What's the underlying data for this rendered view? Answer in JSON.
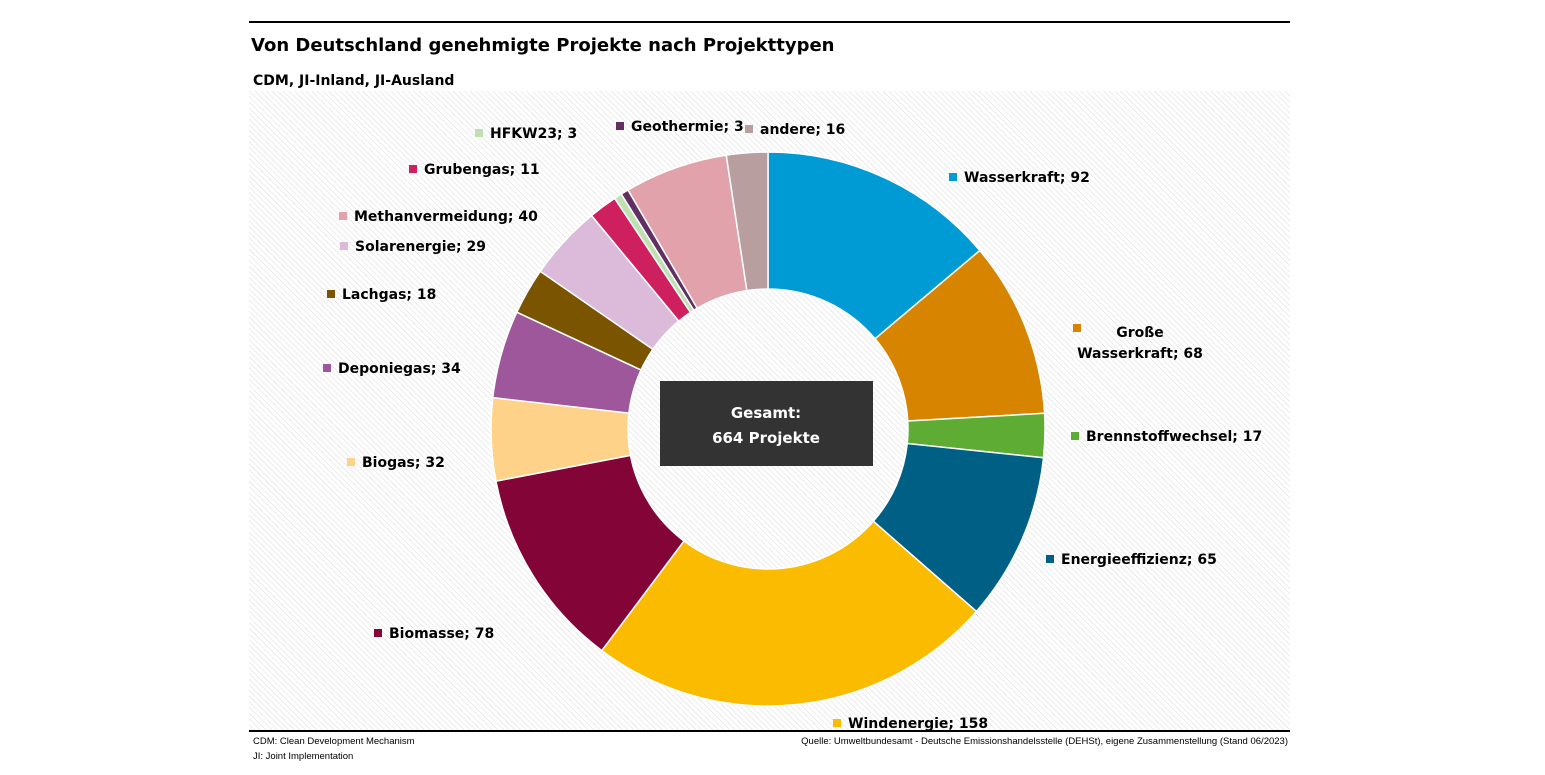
{
  "title": "Von Deutschland genehmigte Projekte nach Projekttypen",
  "subtitle": "CDM, JI-Inland, JI-Ausland",
  "footer": {
    "left_line1": "CDM: Clean Development Mechanism",
    "left_line2": "JI: Joint Implementation",
    "source": "Quelle: Umweltbundesamt - Deutsche Emissionshandelsstelle (DEHSt), eigene Zusammenstellung (Stand 06/2023)"
  },
  "chart_data": {
    "type": "pie",
    "donut": true,
    "title": "Von Deutschland genehmigte Projekte nach Projekttypen",
    "subtitle": "CDM, JI-Inland, JI-Ausland",
    "center_label": [
      "Gesamt:",
      "664 Projekte"
    ],
    "total": 664,
    "categories": [
      "Wasserkraft",
      "Große Wasserkraft",
      "Brennstoffwechsel",
      "Energieeffizienz",
      "Windenergie",
      "Biomasse",
      "Biogas",
      "Deponiegas",
      "Lachgas",
      "Solarenergie",
      "Grubengas",
      "HFKW23",
      "Geothermie",
      "Methanvermeidung",
      "andere"
    ],
    "values": [
      92,
      68,
      17,
      65,
      158,
      78,
      32,
      34,
      18,
      29,
      11,
      3,
      3,
      40,
      16
    ],
    "colors": [
      "#009bd5",
      "#d78400",
      "#5eac34",
      "#005f85",
      "#fabb00",
      "#830538",
      "#fed389",
      "#9d579a",
      "#7b5400",
      "#dbbbd9",
      "#ce1f5e",
      "#bfe0b0",
      "#622f63",
      "#e1a2ac",
      "#b99ea0"
    ],
    "labels": [
      [
        "Wasserkraft; 92"
      ],
      [
        "Große",
        "Wasserkraft; 68"
      ],
      [
        "Brennstoffwechsel; 17"
      ],
      [
        "Energieeffizienz; 65"
      ],
      [
        "Windenergie; 158"
      ],
      [
        "Biomasse; 78"
      ],
      [
        "Biogas; 32"
      ],
      [
        "Deponiegas; 34"
      ],
      [
        "Lachgas; 18"
      ],
      [
        "Solarenergie; 29"
      ],
      [
        "Grubengas; 11"
      ],
      [
        "HFKW23; 3"
      ],
      [
        "Geothermie; 3"
      ],
      [
        "Methanvermeidung; 40"
      ],
      [
        "andere; 16"
      ]
    ],
    "legend": "labels beside segments",
    "grid": false
  }
}
